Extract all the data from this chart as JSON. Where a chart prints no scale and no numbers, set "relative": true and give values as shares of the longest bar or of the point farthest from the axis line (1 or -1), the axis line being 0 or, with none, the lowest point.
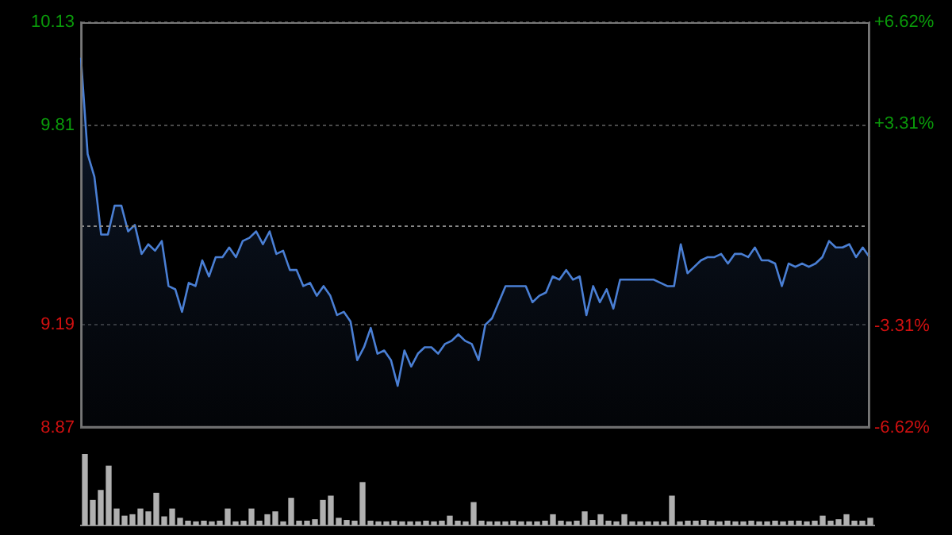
{
  "chart_data": [
    {
      "type": "area",
      "categories": [
        null,
        null,
        null,
        null,
        null,
        null,
        null,
        null,
        null,
        null,
        null,
        null,
        null,
        null,
        null,
        null,
        null,
        null,
        null,
        null,
        null,
        null,
        null,
        null,
        null,
        null,
        null,
        null,
        null,
        null,
        null,
        null,
        null,
        null,
        null,
        null,
        null,
        null,
        null,
        null,
        null,
        null,
        null,
        null,
        null,
        null,
        null,
        null,
        null,
        null,
        null,
        null,
        null,
        null,
        null,
        null,
        null,
        null,
        null,
        null,
        null,
        null,
        null,
        null,
        null,
        null,
        null,
        null,
        null,
        null,
        null,
        null,
        null,
        null,
        null,
        null,
        null,
        null,
        null,
        null,
        null,
        null,
        null,
        null,
        null,
        null,
        null,
        null,
        null,
        null,
        null,
        null,
        null,
        null,
        null,
        null,
        null,
        null,
        null,
        null,
        null,
        null,
        null,
        null,
        null,
        null,
        null,
        null,
        null,
        null,
        null,
        null,
        null,
        null,
        null,
        null,
        null,
        null
      ],
      "series": [
        {
          "color": "#4a7fd4",
          "values": [
            10.02,
            9.72,
            9.65,
            9.47,
            9.47,
            9.56,
            9.56,
            9.48,
            9.5,
            9.41,
            9.44,
            9.42,
            9.45,
            9.31,
            9.3,
            9.23,
            9.32,
            9.31,
            9.39,
            9.34,
            9.4,
            9.4,
            9.43,
            9.4,
            9.45,
            9.46,
            9.48,
            9.44,
            9.48,
            9.41,
            9.42,
            9.36,
            9.36,
            9.31,
            9.32,
            9.28,
            9.31,
            9.28,
            9.22,
            9.23,
            9.2,
            9.08,
            9.12,
            9.18,
            9.1,
            9.11,
            9.08,
            9.0,
            9.11,
            9.06,
            9.1,
            9.12,
            9.12,
            9.1,
            9.13,
            9.14,
            9.16,
            9.14,
            9.13,
            9.08,
            9.19,
            9.21,
            9.26,
            9.31,
            9.31,
            9.31,
            9.31,
            9.26,
            9.28,
            9.29,
            9.34,
            9.33,
            9.36,
            9.33,
            9.34,
            9.22,
            9.31,
            9.26,
            9.3,
            9.24,
            9.33,
            9.33,
            9.33,
            9.33,
            9.33,
            9.33,
            9.32,
            9.31,
            9.31,
            9.44,
            9.35,
            9.37,
            9.39,
            9.4,
            9.4,
            9.41,
            9.38,
            9.41,
            9.41,
            9.4,
            9.43,
            9.39,
            9.39,
            9.38,
            9.31,
            9.38,
            9.37,
            9.38,
            9.37,
            9.38,
            9.4,
            9.45,
            9.43,
            9.43,
            9.44,
            9.4,
            9.43,
            9.4
          ]
        }
      ],
      "ylim": [
        8.87,
        10.13
      ],
      "yticks": [
        8.87,
        9.19,
        9.81,
        10.13
      ],
      "ref_lines": [
        {
          "axis": "y",
          "value": 9.5,
          "color": "#888888",
          "line_style": "dotted"
        }
      ],
      "y2lim": [
        -6.62,
        6.62
      ],
      "y2ticks": [
        {
          "value": -6.62,
          "label": "-6.62%"
        },
        {
          "value": -3.31,
          "label": "-3.31%"
        },
        {
          "value": 3.31,
          "label": "+3.31%"
        },
        {
          "value": 6.62,
          "label": "+6.62%"
        }
      ],
      "grid": "y"
    },
    {
      "type": "bar",
      "relative": true,
      "categories": [
        null,
        null,
        null,
        null,
        null,
        null,
        null,
        null,
        null,
        null,
        null,
        null,
        null,
        null,
        null,
        null,
        null,
        null,
        null,
        null,
        null,
        null,
        null,
        null,
        null,
        null,
        null,
        null,
        null,
        null,
        null,
        null,
        null,
        null,
        null,
        null,
        null,
        null,
        null,
        null,
        null,
        null,
        null,
        null,
        null,
        null,
        null,
        null,
        null,
        null,
        null,
        null,
        null,
        null,
        null,
        null,
        null,
        null,
        null,
        null,
        null,
        null,
        null,
        null,
        null,
        null,
        null,
        null,
        null,
        null,
        null,
        null,
        null,
        null,
        null,
        null,
        null,
        null,
        null,
        null,
        null,
        null,
        null,
        null,
        null,
        null,
        null,
        null,
        null,
        null,
        null,
        null,
        null,
        null,
        null,
        null,
        null,
        null,
        null,
        null
      ],
      "color": "#b0b0b0",
      "values": [
        1.0,
        0.35,
        0.49,
        0.83,
        0.23,
        0.13,
        0.15,
        0.23,
        0.19,
        0.45,
        0.12,
        0.23,
        0.1,
        0.06,
        0.05,
        0.06,
        0.05,
        0.06,
        0.23,
        0.05,
        0.06,
        0.23,
        0.06,
        0.15,
        0.19,
        0.05,
        0.38,
        0.06,
        0.06,
        0.08,
        0.35,
        0.41,
        0.1,
        0.07,
        0.06,
        0.6,
        0.06,
        0.05,
        0.05,
        0.06,
        0.05,
        0.05,
        0.05,
        0.06,
        0.05,
        0.06,
        0.13,
        0.06,
        0.05,
        0.32,
        0.06,
        0.05,
        0.05,
        0.05,
        0.06,
        0.05,
        0.05,
        0.05,
        0.06,
        0.15,
        0.06,
        0.05,
        0.06,
        0.19,
        0.07,
        0.15,
        0.06,
        0.05,
        0.15,
        0.05,
        0.05,
        0.05,
        0.05,
        0.05,
        0.41,
        0.05,
        0.06,
        0.06,
        0.07,
        0.06,
        0.05,
        0.06,
        0.05,
        0.05,
        0.06,
        0.05,
        0.05,
        0.06,
        0.05,
        0.06,
        0.06,
        0.05,
        0.06,
        0.13,
        0.06,
        0.08,
        0.15,
        0.06,
        0.06,
        0.1
      ]
    }
  ]
}
